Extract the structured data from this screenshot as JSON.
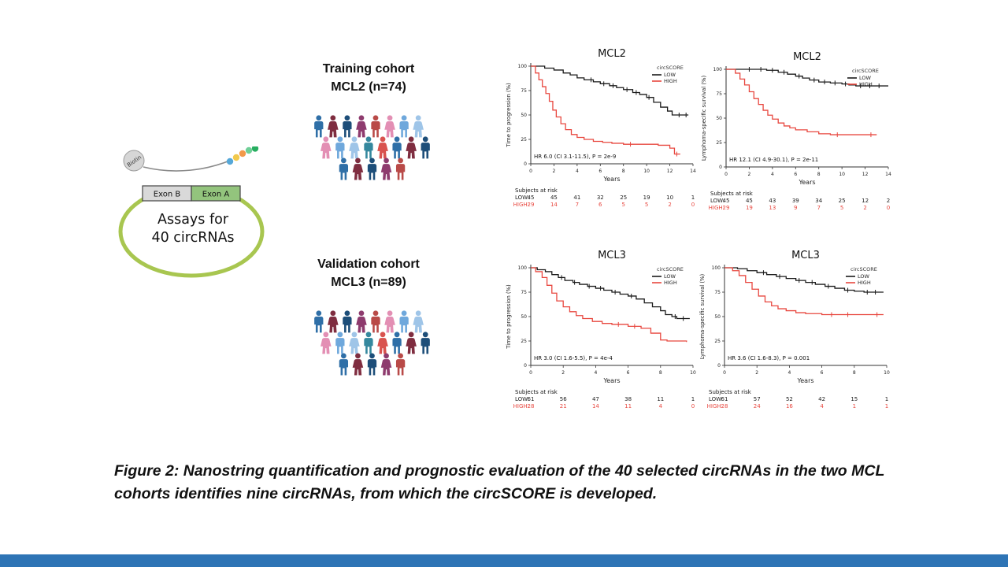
{
  "page": {
    "bottom_bar_color": "#2e74b5"
  },
  "diagram": {
    "biotin": "Biotin",
    "exon_b": "Exon B",
    "exon_a": "Exon A",
    "assay_line1": "Assays for",
    "assay_line2": "40 circRNAs",
    "bead_colors": [
      "#56a8d8",
      "#f2c94c",
      "#f2994a",
      "#6fcf97",
      "#27ae60"
    ],
    "ellipse_color": "#a8c650"
  },
  "cohorts": [
    {
      "line1": "Training cohort",
      "line2": "MCL2 (n=74)"
    },
    {
      "line1": "Validation cohort",
      "line2": "MCL3 (n=89)"
    }
  ],
  "people_palette": [
    "#2f6fa7",
    "#9fc5e8",
    "#b94a48",
    "#7f2d40",
    "#35889e",
    "#e38fb4",
    "#1d4e79",
    "#d9534f",
    "#6fa8dc",
    "#8e3b6e"
  ],
  "caption": "Figure 2: Nanostring quantification and prognostic evaluation of the 40 selected circRNAs in the two MCL cohorts identifies nine circRNAs, from which the circSCORE is developed.",
  "chart_data": [
    {
      "id": "mcl2-progression",
      "type": "line",
      "title": "MCL2",
      "xlabel": "Years",
      "ylabel": "Time to progression (%)",
      "xlim": [
        0,
        14
      ],
      "xticks": [
        0,
        2,
        4,
        6,
        8,
        10,
        12,
        14
      ],
      "ylim": [
        0,
        100
      ],
      "yticks": [
        0,
        25,
        50,
        75,
        100
      ],
      "legend_title": "circSCORE",
      "annotation": "HR 6.0 (CI 3.1-11.5), P = 2e-9",
      "series": [
        {
          "name": "LOW",
          "color": "#1a1a1a",
          "points": [
            [
              0,
              100
            ],
            [
              1.2,
              98
            ],
            [
              2,
              96
            ],
            [
              2.8,
              93
            ],
            [
              3.4,
              91
            ],
            [
              4,
              88
            ],
            [
              4.6,
              86
            ],
            [
              5.4,
              84
            ],
            [
              6,
              82
            ],
            [
              6.8,
              80
            ],
            [
              7.4,
              78
            ],
            [
              8,
              76
            ],
            [
              8.8,
              73
            ],
            [
              9.4,
              71
            ],
            [
              10,
              68
            ],
            [
              10.6,
              63
            ],
            [
              11.2,
              58
            ],
            [
              11.8,
              54
            ],
            [
              12.2,
              50
            ],
            [
              13.6,
              50
            ]
          ],
          "censors": [
            5.2,
            6.3,
            7.1,
            8.3,
            9.1,
            10.2,
            12.8,
            13.4
          ]
        },
        {
          "name": "HIGH",
          "color": "#e8473f",
          "points": [
            [
              0,
              100
            ],
            [
              0.4,
              93
            ],
            [
              0.7,
              86
            ],
            [
              1,
              79
            ],
            [
              1.3,
              72
            ],
            [
              1.6,
              64
            ],
            [
              1.9,
              55
            ],
            [
              2.2,
              48
            ],
            [
              2.6,
              41
            ],
            [
              3,
              35
            ],
            [
              3.5,
              30
            ],
            [
              4,
              27
            ],
            [
              4.6,
              25
            ],
            [
              5.4,
              23
            ],
            [
              6.2,
              22
            ],
            [
              7,
              21
            ],
            [
              8,
              20
            ],
            [
              9.5,
              20
            ],
            [
              11,
              19
            ],
            [
              12,
              16
            ],
            [
              12.4,
              10
            ],
            [
              12.9,
              10
            ]
          ],
          "censors": [
            8.6,
            12.6
          ]
        }
      ],
      "risk_label": "Subjects at risk",
      "risk_rows": [
        {
          "name": "LOW:",
          "color": "#1a1a1a",
          "values": [
            45,
            45,
            41,
            32,
            25,
            19,
            10,
            1
          ]
        },
        {
          "name": "HIGH:",
          "color": "#e8473f",
          "values": [
            29,
            14,
            7,
            6,
            5,
            5,
            2,
            0
          ]
        }
      ]
    },
    {
      "id": "mcl2-survival",
      "type": "line",
      "title": "MCL2",
      "xlabel": "Years",
      "ylabel": "Lymphoma-specific survival (%)",
      "xlim": [
        0,
        14
      ],
      "xticks": [
        0,
        2,
        4,
        6,
        8,
        10,
        12,
        14
      ],
      "ylim": [
        0,
        100
      ],
      "yticks": [
        0,
        25,
        50,
        75,
        100
      ],
      "legend_title": "circSCORE",
      "annotation": "HR 12.1 (CI 4.9-30.1), P = 2e-11",
      "series": [
        {
          "name": "LOW",
          "color": "#1a1a1a",
          "points": [
            [
              0,
              100
            ],
            [
              3.5,
              99
            ],
            [
              4.5,
              97
            ],
            [
              5.3,
              95
            ],
            [
              6,
              93
            ],
            [
              6.6,
              91
            ],
            [
              7.2,
              89
            ],
            [
              8,
              87
            ],
            [
              9,
              86
            ],
            [
              10,
              85
            ],
            [
              10.6,
              84
            ],
            [
              11.2,
              83
            ],
            [
              14,
              83
            ]
          ],
          "censors": [
            2,
            3,
            4,
            5,
            6.3,
            7.6,
            8.5,
            9.4,
            10.3,
            11.6,
            12.4,
            13.2
          ]
        },
        {
          "name": "HIGH",
          "color": "#e8473f",
          "points": [
            [
              0,
              100
            ],
            [
              0.8,
              96
            ],
            [
              1.2,
              90
            ],
            [
              1.6,
              84
            ],
            [
              2,
              77
            ],
            [
              2.4,
              70
            ],
            [
              2.8,
              64
            ],
            [
              3.2,
              58
            ],
            [
              3.6,
              53
            ],
            [
              4,
              49
            ],
            [
              4.5,
              45
            ],
            [
              5,
              42
            ],
            [
              5.5,
              40
            ],
            [
              6,
              38
            ],
            [
              7,
              36
            ],
            [
              8,
              34
            ],
            [
              9,
              33
            ],
            [
              13,
              33
            ]
          ],
          "censors": [
            9.6,
            12.5
          ]
        }
      ],
      "risk_label": "Subjects at risk",
      "risk_rows": [
        {
          "name": "LOW:",
          "color": "#1a1a1a",
          "values": [
            45,
            45,
            43,
            39,
            34,
            25,
            12,
            2
          ]
        },
        {
          "name": "HIGH:",
          "color": "#e8473f",
          "values": [
            29,
            19,
            13,
            9,
            7,
            5,
            2,
            0
          ]
        }
      ]
    },
    {
      "id": "mcl3-progression",
      "type": "line",
      "title": "MCL3",
      "xlabel": "Years",
      "ylabel": "Time to progression (%)",
      "xlim": [
        0,
        10
      ],
      "xticks": [
        0,
        2,
        4,
        6,
        8,
        10
      ],
      "ylim": [
        0,
        100
      ],
      "yticks": [
        0,
        25,
        50,
        75,
        100
      ],
      "legend_title": "circSCORE",
      "annotation": "HR 3.0 (CI 1.6-5.5), P = 4e-4",
      "series": [
        {
          "name": "LOW",
          "color": "#1a1a1a",
          "points": [
            [
              0,
              100
            ],
            [
              0.4,
              98
            ],
            [
              0.9,
              96
            ],
            [
              1.3,
              93
            ],
            [
              1.7,
              90
            ],
            [
              2.1,
              87
            ],
            [
              2.6,
              85
            ],
            [
              3,
              83
            ],
            [
              3.5,
              81
            ],
            [
              4,
              79
            ],
            [
              4.5,
              77
            ],
            [
              5,
              75
            ],
            [
              5.5,
              73
            ],
            [
              6,
              71
            ],
            [
              6.5,
              68
            ],
            [
              7,
              64
            ],
            [
              7.5,
              60
            ],
            [
              8,
              56
            ],
            [
              8.3,
              52
            ],
            [
              8.7,
              50
            ],
            [
              9,
              48
            ],
            [
              9.8,
              48
            ]
          ],
          "censors": [
            1.9,
            2.7,
            3.6,
            4.3,
            5.2,
            6.2,
            8.9,
            9.4
          ]
        },
        {
          "name": "HIGH",
          "color": "#e8473f",
          "points": [
            [
              0,
              100
            ],
            [
              0.3,
              96
            ],
            [
              0.7,
              90
            ],
            [
              1,
              82
            ],
            [
              1.3,
              74
            ],
            [
              1.6,
              66
            ],
            [
              2,
              60
            ],
            [
              2.4,
              55
            ],
            [
              2.8,
              51
            ],
            [
              3.2,
              48
            ],
            [
              3.8,
              45
            ],
            [
              4.4,
              43
            ],
            [
              5,
              42
            ],
            [
              6,
              40
            ],
            [
              6.8,
              38
            ],
            [
              7.4,
              33
            ],
            [
              8,
              26
            ],
            [
              8.4,
              25
            ],
            [
              9.6,
              24
            ]
          ],
          "censors": [
            5.4,
            6.4
          ]
        }
      ],
      "risk_label": "Subjects at risk",
      "risk_rows": [
        {
          "name": "LOW:",
          "color": "#1a1a1a",
          "values": [
            61,
            56,
            47,
            38,
            11,
            1
          ]
        },
        {
          "name": "HIGH:",
          "color": "#e8473f",
          "values": [
            28,
            21,
            14,
            11,
            4,
            0
          ]
        }
      ]
    },
    {
      "id": "mcl3-survival",
      "type": "line",
      "title": "MCL3",
      "xlabel": "Years",
      "ylabel": "Lymphoma-specific survival (%)",
      "xlim": [
        0,
        10
      ],
      "xticks": [
        0,
        2,
        4,
        6,
        8,
        10
      ],
      "ylim": [
        0,
        100
      ],
      "yticks": [
        0,
        25,
        50,
        75,
        100
      ],
      "legend_title": "circSCORE",
      "annotation": "HR 3.6 (CI 1.6-8.3), P = 0.001",
      "series": [
        {
          "name": "LOW",
          "color": "#1a1a1a",
          "points": [
            [
              0,
              100
            ],
            [
              0.8,
              99
            ],
            [
              1.4,
              97
            ],
            [
              2,
              95
            ],
            [
              2.6,
              93
            ],
            [
              3.2,
              91
            ],
            [
              3.8,
              89
            ],
            [
              4.4,
              87
            ],
            [
              5,
              85
            ],
            [
              5.6,
              83
            ],
            [
              6.2,
              81
            ],
            [
              6.8,
              79
            ],
            [
              7.4,
              77
            ],
            [
              8,
              76
            ],
            [
              8.6,
              75
            ],
            [
              9.8,
              75
            ]
          ],
          "censors": [
            2.4,
            3.4,
            4.6,
            5.4,
            6.4,
            7.6,
            8.8,
            9.3
          ]
        },
        {
          "name": "HIGH",
          "color": "#e8473f",
          "points": [
            [
              0,
              100
            ],
            [
              0.5,
              97
            ],
            [
              0.9,
              92
            ],
            [
              1.3,
              85
            ],
            [
              1.7,
              78
            ],
            [
              2.1,
              71
            ],
            [
              2.5,
              65
            ],
            [
              2.9,
              61
            ],
            [
              3.3,
              58
            ],
            [
              3.8,
              56
            ],
            [
              4.4,
              54
            ],
            [
              5,
              53
            ],
            [
              6,
              52
            ],
            [
              9.8,
              52
            ]
          ],
          "censors": [
            6.6,
            7.6,
            9.4
          ]
        }
      ],
      "risk_label": "Subjects at risk",
      "risk_rows": [
        {
          "name": "LOW:",
          "color": "#1a1a1a",
          "values": [
            61,
            57,
            52,
            42,
            15,
            1
          ]
        },
        {
          "name": "HIGH:",
          "color": "#e8473f",
          "values": [
            28,
            24,
            16,
            4,
            1,
            1
          ]
        }
      ]
    }
  ]
}
